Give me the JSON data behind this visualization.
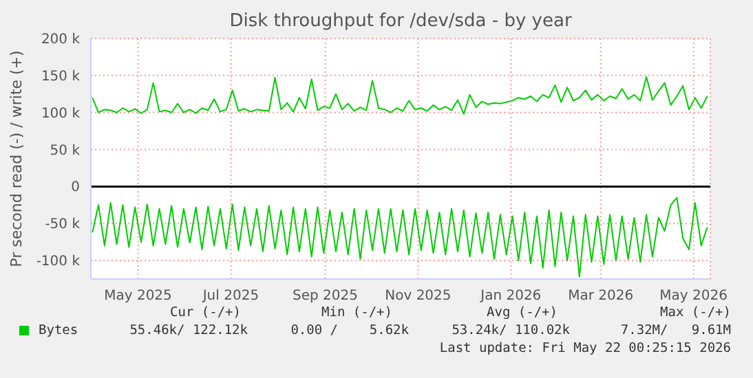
{
  "chart_data": {
    "type": "line",
    "title": "Disk throughput for /dev/sda - by year",
    "ylabel": "Pr second read (-) / write (+)",
    "x": [
      "2025-04-01",
      "2025-04-05",
      "2025-04-09",
      "2025-04-13",
      "2025-04-17",
      "2025-04-21",
      "2025-04-25",
      "2025-04-29",
      "2025-05-03",
      "2025-05-07",
      "2025-05-11",
      "2025-05-15",
      "2025-05-19",
      "2025-05-23",
      "2025-05-27",
      "2025-05-31",
      "2025-06-04",
      "2025-06-08",
      "2025-06-12",
      "2025-06-16",
      "2025-06-20",
      "2025-06-24",
      "2025-06-28",
      "2025-07-02",
      "2025-07-06",
      "2025-07-10",
      "2025-07-14",
      "2025-07-18",
      "2025-07-22",
      "2025-07-26",
      "2025-07-30",
      "2025-08-03",
      "2025-08-07",
      "2025-08-11",
      "2025-08-15",
      "2025-08-19",
      "2025-08-23",
      "2025-08-27",
      "2025-08-31",
      "2025-09-04",
      "2025-09-08",
      "2025-09-12",
      "2025-09-16",
      "2025-09-20",
      "2025-09-24",
      "2025-09-28",
      "2025-10-02",
      "2025-10-06",
      "2025-10-10",
      "2025-10-14",
      "2025-10-18",
      "2025-10-22",
      "2025-10-26",
      "2025-10-30",
      "2025-11-03",
      "2025-11-07",
      "2025-11-11",
      "2025-11-15",
      "2025-11-19",
      "2025-11-23",
      "2025-11-27",
      "2025-12-01",
      "2025-12-05",
      "2025-12-09",
      "2025-12-13",
      "2025-12-17",
      "2025-12-21",
      "2025-12-25",
      "2025-12-29",
      "2026-01-02",
      "2026-01-06",
      "2026-01-10",
      "2026-01-14",
      "2026-01-18",
      "2026-01-22",
      "2026-01-26",
      "2026-01-30",
      "2026-02-03",
      "2026-02-07",
      "2026-02-11",
      "2026-02-15",
      "2026-02-19",
      "2026-02-23",
      "2026-02-27",
      "2026-03-03",
      "2026-03-07",
      "2026-03-11",
      "2026-03-15",
      "2026-03-19",
      "2026-03-23",
      "2026-03-27",
      "2026-03-31",
      "2026-04-04",
      "2026-04-08",
      "2026-04-12",
      "2026-04-16",
      "2026-04-20",
      "2026-04-24",
      "2026-04-28",
      "2026-05-02",
      "2026-05-06",
      "2026-05-10"
    ],
    "series": [
      {
        "name": "Bytes",
        "color": "#00cc00",
        "values": [
          120000,
          100000,
          104000,
          103000,
          100000,
          106000,
          101000,
          105000,
          99000,
          104000,
          140000,
          101000,
          103000,
          100000,
          112000,
          100000,
          104000,
          99000,
          106000,
          103000,
          118000,
          101000,
          104000,
          130000,
          102000,
          105000,
          101000,
          104000,
          103000,
          102000,
          147000,
          104000,
          113000,
          101000,
          120000,
          105000,
          145000,
          103000,
          108000,
          106000,
          125000,
          104000,
          112000,
          102000,
          107000,
          103000,
          143000,
          106000,
          104000,
          100000,
          106000,
          102000,
          116000,
          104000,
          106000,
          102000,
          110000,
          104000,
          108000,
          103000,
          117000,
          98000,
          124000,
          107000,
          115000,
          111000,
          113000,
          112000,
          114000,
          116000,
          120000,
          118000,
          122000,
          115000,
          124000,
          120000,
          137000,
          114000,
          134000,
          116000,
          120000,
          130000,
          117000,
          124000,
          116000,
          122000,
          119000,
          132000,
          118000,
          124000,
          116000,
          148000,
          117000,
          129000,
          140000,
          110000,
          122000,
          136000,
          104000,
          120000,
          106000,
          122000
        ]
      },
      {
        "color": "#00cc00",
        "values": [
          -62000,
          -25000,
          -80000,
          -22000,
          -78000,
          -25000,
          -82000,
          -28000,
          -75000,
          -24000,
          -80000,
          -30000,
          -78000,
          -26000,
          -82000,
          -30000,
          -76000,
          -28000,
          -85000,
          -27000,
          -80000,
          -30000,
          -84000,
          -24000,
          -86000,
          -28000,
          -80000,
          -30000,
          -88000,
          -26000,
          -84000,
          -32000,
          -92000,
          -28000,
          -88000,
          -30000,
          -95000,
          -28000,
          -90000,
          -32000,
          -88000,
          -35000,
          -92000,
          -30000,
          -98000,
          -32000,
          -86000,
          -30000,
          -90000,
          -30000,
          -88000,
          -32000,
          -92000,
          -30000,
          -86000,
          -32000,
          -90000,
          -35000,
          -92000,
          -30000,
          -88000,
          -32000,
          -95000,
          -36000,
          -90000,
          -35000,
          -98000,
          -38000,
          -92000,
          -40000,
          -100000,
          -35000,
          -104000,
          -40000,
          -110000,
          -32000,
          -108000,
          -35000,
          -100000,
          -40000,
          -122000,
          -38000,
          -102000,
          -40000,
          -105000,
          -38000,
          -100000,
          -40000,
          -98000,
          -42000,
          -102000,
          -38000,
          -95000,
          -42000,
          -60000,
          -25000,
          -15000,
          -70000,
          -85000,
          -22000,
          -80000,
          -55000
        ]
      }
    ],
    "xlim": [
      "2025-03-31",
      "2026-05-12"
    ],
    "xticks": [
      {
        "value": "2025-05-01",
        "label": "May 2025"
      },
      {
        "value": "2025-07-01",
        "label": "Jul 2025"
      },
      {
        "value": "2025-09-01",
        "label": "Sep 2025"
      },
      {
        "value": "2025-11-01",
        "label": "Nov 2025"
      },
      {
        "value": "2026-01-01",
        "label": "Jan 2026"
      },
      {
        "value": "2026-03-01",
        "label": "Mar 2026"
      },
      {
        "value": "2026-05-01",
        "label": "May 2026"
      }
    ],
    "ylim": [
      -125000,
      200000
    ],
    "yticks": [
      {
        "value": -100000,
        "label": "-100 k"
      },
      {
        "value": -50000,
        "label": "-50 k"
      },
      0,
      {
        "value": 50000,
        "label": "50 k"
      },
      {
        "value": 100000,
        "label": "100 k"
      },
      {
        "value": 150000,
        "label": "150 k"
      },
      {
        "value": 200000,
        "label": "200 k"
      }
    ],
    "ref_lines": [
      {
        "axis": "y",
        "value": 0,
        "color": "#000000"
      }
    ],
    "grid": true,
    "legend": "bottom",
    "marker": "none",
    "line_style": "solid",
    "annotations": [
      "Cur (-/+)",
      "Min (-/+)",
      "Avg (-/+)",
      "Max (-/+)",
      "55.46k/ 122.12k",
      "0.00 /    5.62k",
      "53.24k/ 110.02k",
      "7.32M/   9.61M",
      "Last update: Fri May 22 00:25:15 2026"
    ]
  }
}
